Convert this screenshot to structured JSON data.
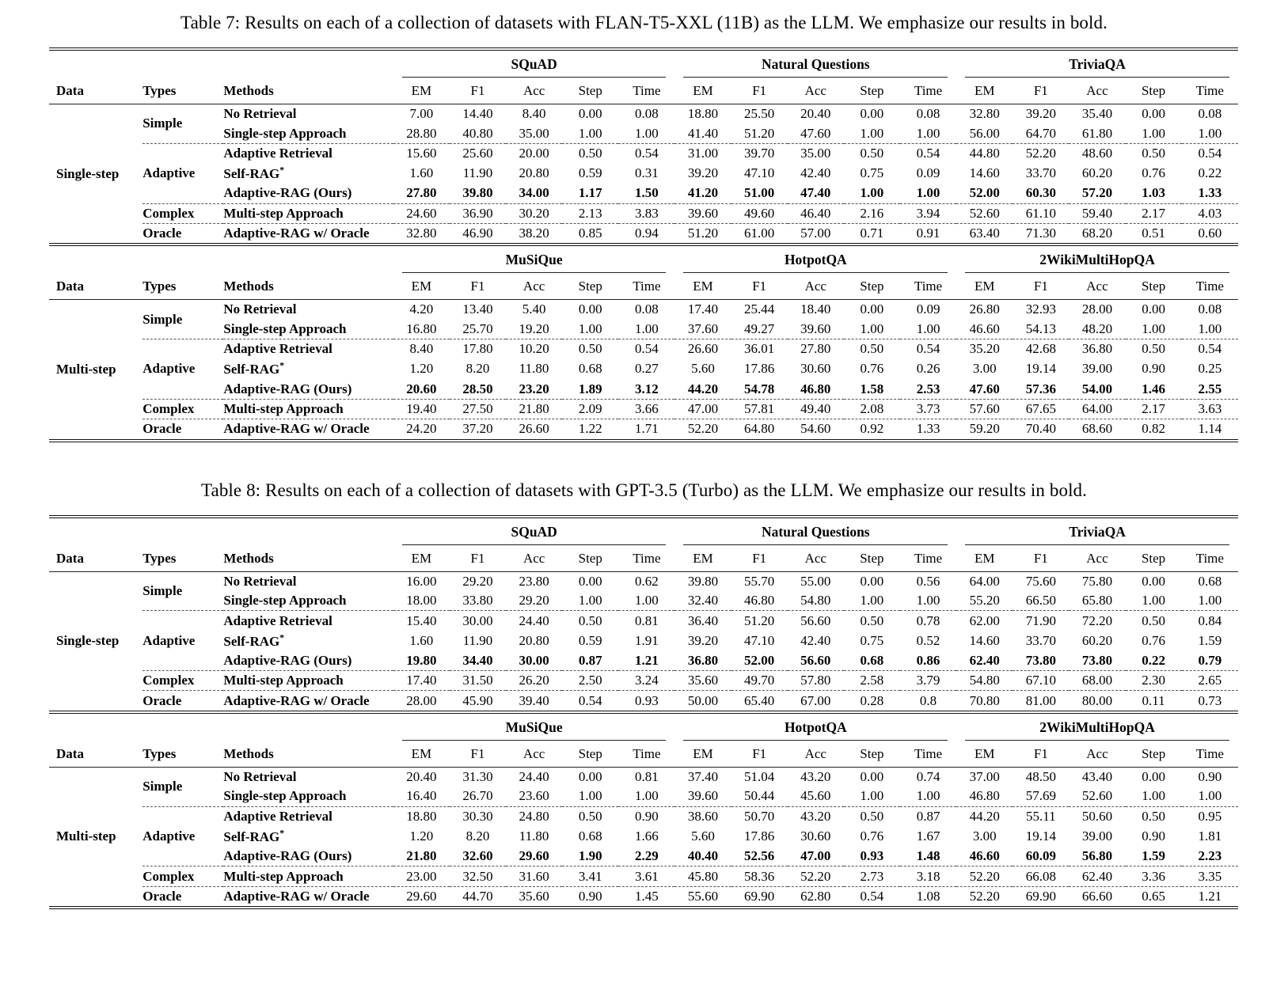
{
  "column_headers": {
    "data": "Data",
    "types": "Types",
    "methods": "Methods"
  },
  "metric_headers": [
    "EM",
    "F1",
    "Acc",
    "Step",
    "Time"
  ],
  "tables": [
    {
      "id": "table7",
      "caption": "Table 7: Results on each of a collection of datasets with FLAN-T5-XXL (11B) as the LLM. We emphasize our results in bold.",
      "panels": [
        {
          "data_label": "Single-step",
          "datasets": [
            "SQuAD",
            "Natural Questions",
            "TriviaQA"
          ],
          "groups": [
            {
              "type": "Simple",
              "rows": [
                {
                  "method": "No Retrieval",
                  "bold": false,
                  "values": [
                    "7.00",
                    "14.40",
                    "8.40",
                    "0.00",
                    "0.08",
                    "18.80",
                    "25.50",
                    "20.40",
                    "0.00",
                    "0.08",
                    "32.80",
                    "39.20",
                    "35.40",
                    "0.00",
                    "0.08"
                  ]
                },
                {
                  "method": "Single-step Approach",
                  "bold": false,
                  "values": [
                    "28.80",
                    "40.80",
                    "35.00",
                    "1.00",
                    "1.00",
                    "41.40",
                    "51.20",
                    "47.60",
                    "1.00",
                    "1.00",
                    "56.00",
                    "64.70",
                    "61.80",
                    "1.00",
                    "1.00"
                  ]
                }
              ]
            },
            {
              "type": "Adaptive",
              "rows": [
                {
                  "method": "Adaptive Retrieval",
                  "bold": false,
                  "values": [
                    "15.60",
                    "25.60",
                    "20.00",
                    "0.50",
                    "0.54",
                    "31.00",
                    "39.70",
                    "35.00",
                    "0.50",
                    "0.54",
                    "44.80",
                    "52.20",
                    "48.60",
                    "0.50",
                    "0.54"
                  ]
                },
                {
                  "method": "Self-RAG*",
                  "bold": false,
                  "values": [
                    "1.60",
                    "11.90",
                    "20.80",
                    "0.59",
                    "0.31",
                    "39.20",
                    "47.10",
                    "42.40",
                    "0.75",
                    "0.09",
                    "14.60",
                    "33.70",
                    "60.20",
                    "0.76",
                    "0.22"
                  ]
                },
                {
                  "method": "Adaptive-RAG (Ours)",
                  "bold": true,
                  "values": [
                    "27.80",
                    "39.80",
                    "34.00",
                    "1.17",
                    "1.50",
                    "41.20",
                    "51.00",
                    "47.40",
                    "1.00",
                    "1.00",
                    "52.00",
                    "60.30",
                    "57.20",
                    "1.03",
                    "1.33"
                  ]
                }
              ]
            },
            {
              "type": "Complex",
              "rows": [
                {
                  "method": "Multi-step Approach",
                  "bold": false,
                  "values": [
                    "24.60",
                    "36.90",
                    "30.20",
                    "2.13",
                    "3.83",
                    "39.60",
                    "49.60",
                    "46.40",
                    "2.16",
                    "3.94",
                    "52.60",
                    "61.10",
                    "59.40",
                    "2.17",
                    "4.03"
                  ]
                }
              ]
            },
            {
              "type": "Oracle",
              "rows": [
                {
                  "method": "Adaptive-RAG w/ Oracle",
                  "bold": false,
                  "values": [
                    "32.80",
                    "46.90",
                    "38.20",
                    "0.85",
                    "0.94",
                    "51.20",
                    "61.00",
                    "57.00",
                    "0.71",
                    "0.91",
                    "63.40",
                    "71.30",
                    "68.20",
                    "0.51",
                    "0.60"
                  ]
                }
              ]
            }
          ]
        },
        {
          "data_label": "Multi-step",
          "datasets": [
            "MuSiQue",
            "HotpotQA",
            "2WikiMultiHopQA"
          ],
          "groups": [
            {
              "type": "Simple",
              "rows": [
                {
                  "method": "No Retrieval",
                  "bold": false,
                  "values": [
                    "4.20",
                    "13.40",
                    "5.40",
                    "0.00",
                    "0.08",
                    "17.40",
                    "25.44",
                    "18.40",
                    "0.00",
                    "0.09",
                    "26.80",
                    "32.93",
                    "28.00",
                    "0.00",
                    "0.08"
                  ]
                },
                {
                  "method": "Single-step Approach",
                  "bold": false,
                  "values": [
                    "16.80",
                    "25.70",
                    "19.20",
                    "1.00",
                    "1.00",
                    "37.60",
                    "49.27",
                    "39.60",
                    "1.00",
                    "1.00",
                    "46.60",
                    "54.13",
                    "48.20",
                    "1.00",
                    "1.00"
                  ]
                }
              ]
            },
            {
              "type": "Adaptive",
              "rows": [
                {
                  "method": "Adaptive Retrieval",
                  "bold": false,
                  "values": [
                    "8.40",
                    "17.80",
                    "10.20",
                    "0.50",
                    "0.54",
                    "26.60",
                    "36.01",
                    "27.80",
                    "0.50",
                    "0.54",
                    "35.20",
                    "42.68",
                    "36.80",
                    "0.50",
                    "0.54"
                  ]
                },
                {
                  "method": "Self-RAG*",
                  "bold": false,
                  "values": [
                    "1.20",
                    "8.20",
                    "11.80",
                    "0.68",
                    "0.27",
                    "5.60",
                    "17.86",
                    "30.60",
                    "0.76",
                    "0.26",
                    "3.00",
                    "19.14",
                    "39.00",
                    "0.90",
                    "0.25"
                  ]
                },
                {
                  "method": "Adaptive-RAG (Ours)",
                  "bold": true,
                  "values": [
                    "20.60",
                    "28.50",
                    "23.20",
                    "1.89",
                    "3.12",
                    "44.20",
                    "54.78",
                    "46.80",
                    "1.58",
                    "2.53",
                    "47.60",
                    "57.36",
                    "54.00",
                    "1.46",
                    "2.55"
                  ]
                }
              ]
            },
            {
              "type": "Complex",
              "rows": [
                {
                  "method": "Multi-step Approach",
                  "bold": false,
                  "values": [
                    "19.40",
                    "27.50",
                    "21.80",
                    "2.09",
                    "3.66",
                    "47.00",
                    "57.81",
                    "49.40",
                    "2.08",
                    "3.73",
                    "57.60",
                    "67.65",
                    "64.00",
                    "2.17",
                    "3.63"
                  ]
                }
              ]
            },
            {
              "type": "Oracle",
              "rows": [
                {
                  "method": "Adaptive-RAG w/ Oracle",
                  "bold": false,
                  "values": [
                    "24.20",
                    "37.20",
                    "26.60",
                    "1.22",
                    "1.71",
                    "52.20",
                    "64.80",
                    "54.60",
                    "0.92",
                    "1.33",
                    "59.20",
                    "70.40",
                    "68.60",
                    "0.82",
                    "1.14"
                  ]
                }
              ]
            }
          ]
        }
      ]
    },
    {
      "id": "table8",
      "caption": "Table 8: Results on each of a collection of datasets with GPT-3.5 (Turbo) as the LLM. We emphasize our results in bold.",
      "panels": [
        {
          "data_label": "Single-step",
          "datasets": [
            "SQuAD",
            "Natural Questions",
            "TriviaQA"
          ],
          "groups": [
            {
              "type": "Simple",
              "rows": [
                {
                  "method": "No Retrieval",
                  "bold": false,
                  "values": [
                    "16.00",
                    "29.20",
                    "23.80",
                    "0.00",
                    "0.62",
                    "39.80",
                    "55.70",
                    "55.00",
                    "0.00",
                    "0.56",
                    "64.00",
                    "75.60",
                    "75.80",
                    "0.00",
                    "0.68"
                  ]
                },
                {
                  "method": "Single-step Approach",
                  "bold": false,
                  "values": [
                    "18.00",
                    "33.80",
                    "29.20",
                    "1.00",
                    "1.00",
                    "32.40",
                    "46.80",
                    "54.80",
                    "1.00",
                    "1.00",
                    "55.20",
                    "66.50",
                    "65.80",
                    "1.00",
                    "1.00"
                  ]
                }
              ]
            },
            {
              "type": "Adaptive",
              "rows": [
                {
                  "method": "Adaptive Retrieval",
                  "bold": false,
                  "values": [
                    "15.40",
                    "30.00",
                    "24.40",
                    "0.50",
                    "0.81",
                    "36.40",
                    "51.20",
                    "56.60",
                    "0.50",
                    "0.78",
                    "62.00",
                    "71.90",
                    "72.20",
                    "0.50",
                    "0.84"
                  ]
                },
                {
                  "method": "Self-RAG*",
                  "bold": false,
                  "values": [
                    "1.60",
                    "11.90",
                    "20.80",
                    "0.59",
                    "1.91",
                    "39.20",
                    "47.10",
                    "42.40",
                    "0.75",
                    "0.52",
                    "14.60",
                    "33.70",
                    "60.20",
                    "0.76",
                    "1.59"
                  ]
                },
                {
                  "method": "Adaptive-RAG (Ours)",
                  "bold": true,
                  "values": [
                    "19.80",
                    "34.40",
                    "30.00",
                    "0.87",
                    "1.21",
                    "36.80",
                    "52.00",
                    "56.60",
                    "0.68",
                    "0.86",
                    "62.40",
                    "73.80",
                    "73.80",
                    "0.22",
                    "0.79"
                  ]
                }
              ]
            },
            {
              "type": "Complex",
              "rows": [
                {
                  "method": "Multi-step Approach",
                  "bold": false,
                  "values": [
                    "17.40",
                    "31.50",
                    "26.20",
                    "2.50",
                    "3.24",
                    "35.60",
                    "49.70",
                    "57.80",
                    "2.58",
                    "3.79",
                    "54.80",
                    "67.10",
                    "68.00",
                    "2.30",
                    "2.65"
                  ]
                }
              ]
            },
            {
              "type": "Oracle",
              "rows": [
                {
                  "method": "Adaptive-RAG w/ Oracle",
                  "bold": false,
                  "values": [
                    "28.00",
                    "45.90",
                    "39.40",
                    "0.54",
                    "0.93",
                    "50.00",
                    "65.40",
                    "67.00",
                    "0.28",
                    "0.8",
                    "70.80",
                    "81.00",
                    "80.00",
                    "0.11",
                    "0.73"
                  ]
                }
              ]
            }
          ]
        },
        {
          "data_label": "Multi-step",
          "datasets": [
            "MuSiQue",
            "HotpotQA",
            "2WikiMultiHopQA"
          ],
          "groups": [
            {
              "type": "Simple",
              "rows": [
                {
                  "method": "No Retrieval",
                  "bold": false,
                  "values": [
                    "20.40",
                    "31.30",
                    "24.40",
                    "0.00",
                    "0.81",
                    "37.40",
                    "51.04",
                    "43.20",
                    "0.00",
                    "0.74",
                    "37.00",
                    "48.50",
                    "43.40",
                    "0.00",
                    "0.90"
                  ]
                },
                {
                  "method": "Single-step Approach",
                  "bold": false,
                  "values": [
                    "16.40",
                    "26.70",
                    "23.60",
                    "1.00",
                    "1.00",
                    "39.60",
                    "50.44",
                    "45.60",
                    "1.00",
                    "1.00",
                    "46.80",
                    "57.69",
                    "52.60",
                    "1.00",
                    "1.00"
                  ]
                }
              ]
            },
            {
              "type": "Adaptive",
              "rows": [
                {
                  "method": "Adaptive Retrieval",
                  "bold": false,
                  "values": [
                    "18.80",
                    "30.30",
                    "24.80",
                    "0.50",
                    "0.90",
                    "38.60",
                    "50.70",
                    "43.20",
                    "0.50",
                    "0.87",
                    "44.20",
                    "55.11",
                    "50.60",
                    "0.50",
                    "0.95"
                  ]
                },
                {
                  "method": "Self-RAG*",
                  "bold": false,
                  "values": [
                    "1.20",
                    "8.20",
                    "11.80",
                    "0.68",
                    "1.66",
                    "5.60",
                    "17.86",
                    "30.60",
                    "0.76",
                    "1.67",
                    "3.00",
                    "19.14",
                    "39.00",
                    "0.90",
                    "1.81"
                  ]
                },
                {
                  "method": "Adaptive-RAG (Ours)",
                  "bold": true,
                  "values": [
                    "21.80",
                    "32.60",
                    "29.60",
                    "1.90",
                    "2.29",
                    "40.40",
                    "52.56",
                    "47.00",
                    "0.93",
                    "1.48",
                    "46.60",
                    "60.09",
                    "56.80",
                    "1.59",
                    "2.23"
                  ]
                }
              ]
            },
            {
              "type": "Complex",
              "rows": [
                {
                  "method": "Multi-step Approach",
                  "bold": false,
                  "values": [
                    "23.00",
                    "32.50",
                    "31.60",
                    "3.41",
                    "3.61",
                    "45.80",
                    "58.36",
                    "52.20",
                    "2.73",
                    "3.18",
                    "52.20",
                    "66.08",
                    "62.40",
                    "3.36",
                    "3.35"
                  ]
                }
              ]
            },
            {
              "type": "Oracle",
              "rows": [
                {
                  "method": "Adaptive-RAG w/ Oracle",
                  "bold": false,
                  "values": [
                    "29.60",
                    "44.70",
                    "35.60",
                    "0.90",
                    "1.45",
                    "55.60",
                    "69.90",
                    "62.80",
                    "0.54",
                    "1.08",
                    "52.20",
                    "69.90",
                    "66.60",
                    "0.65",
                    "1.21"
                  ]
                }
              ]
            }
          ]
        }
      ]
    }
  ]
}
